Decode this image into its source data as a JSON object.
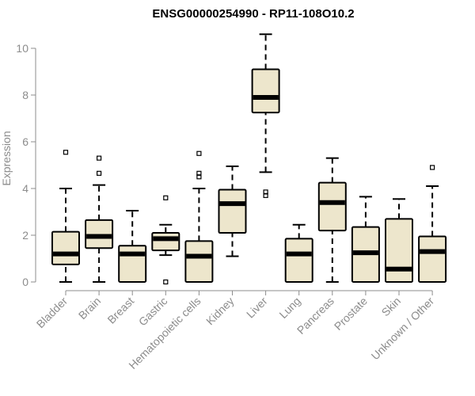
{
  "chart_data": {
    "type": "boxplot",
    "title": "ENSG00000254990 - RP11-108O10.2",
    "xlabel": "",
    "ylabel": "Expression",
    "ylim": [
      0,
      10.6
    ],
    "yticks": [
      0,
      2,
      4,
      6,
      8,
      10
    ],
    "grid": false,
    "legend": "none",
    "colors": {
      "box_fill": "#ede6cc",
      "stroke": "#000000",
      "axis": "#8c8c8c"
    },
    "categories": [
      "Bladder",
      "Brain",
      "Breast",
      "Gastric",
      "Hematopoietic cells",
      "Kidney",
      "Liver",
      "Lung",
      "Pancreas",
      "Prostate",
      "Skin",
      "Unknown / Other"
    ],
    "boxes": [
      {
        "whisker_low": 0.0,
        "q1": 0.75,
        "median": 1.2,
        "q3": 2.15,
        "whisker_high": 4.0,
        "outliers": [
          5.55
        ]
      },
      {
        "whisker_low": 0.0,
        "q1": 1.45,
        "median": 1.95,
        "q3": 2.65,
        "whisker_high": 4.15,
        "outliers": [
          4.65,
          5.3
        ]
      },
      {
        "whisker_low": 0.0,
        "q1": 0.0,
        "median": 1.2,
        "q3": 1.55,
        "whisker_high": 3.05,
        "outliers": []
      },
      {
        "whisker_low": 1.15,
        "q1": 1.35,
        "median": 1.85,
        "q3": 2.1,
        "whisker_high": 2.45,
        "outliers": [
          0.0,
          3.6
        ]
      },
      {
        "whisker_low": 0.0,
        "q1": 0.0,
        "median": 1.1,
        "q3": 1.75,
        "whisker_high": 4.0,
        "outliers": [
          4.5,
          4.65,
          5.5
        ]
      },
      {
        "whisker_low": 1.1,
        "q1": 2.1,
        "median": 3.35,
        "q3": 3.95,
        "whisker_high": 4.95,
        "outliers": []
      },
      {
        "whisker_low": 4.7,
        "q1": 7.25,
        "median": 7.9,
        "q3": 9.1,
        "whisker_high": 10.6,
        "outliers": [
          3.7,
          3.85
        ]
      },
      {
        "whisker_low": 0.0,
        "q1": 0.0,
        "median": 1.2,
        "q3": 1.85,
        "whisker_high": 2.45,
        "outliers": []
      },
      {
        "whisker_low": 0.0,
        "q1": 2.2,
        "median": 3.4,
        "q3": 4.25,
        "whisker_high": 5.3,
        "outliers": []
      },
      {
        "whisker_low": 0.0,
        "q1": 0.0,
        "median": 1.25,
        "q3": 2.35,
        "whisker_high": 3.65,
        "outliers": []
      },
      {
        "whisker_low": 0.0,
        "q1": 0.0,
        "median": 0.55,
        "q3": 2.7,
        "whisker_high": 3.55,
        "outliers": []
      },
      {
        "whisker_low": 0.0,
        "q1": 0.0,
        "median": 1.3,
        "q3": 1.95,
        "whisker_high": 4.1,
        "outliers": [
          4.9
        ]
      }
    ]
  }
}
